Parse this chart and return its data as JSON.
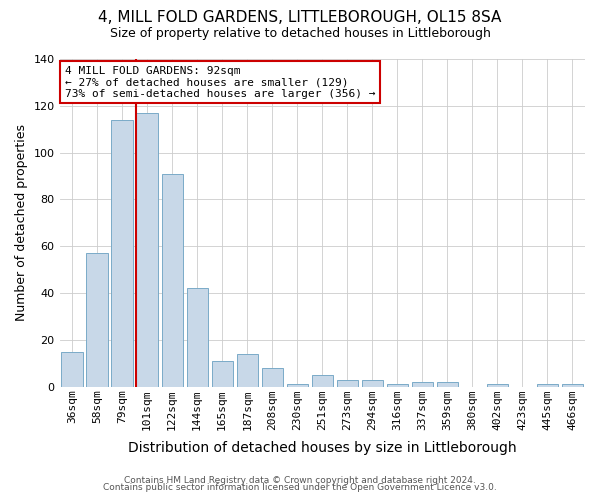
{
  "title": "4, MILL FOLD GARDENS, LITTLEBOROUGH, OL15 8SA",
  "subtitle": "Size of property relative to detached houses in Littleborough",
  "xlabel": "Distribution of detached houses by size in Littleborough",
  "ylabel": "Number of detached properties",
  "footnote1": "Contains HM Land Registry data © Crown copyright and database right 2024.",
  "footnote2": "Contains public sector information licensed under the Open Government Licence v3.0.",
  "bar_labels": [
    "36sqm",
    "58sqm",
    "79sqm",
    "101sqm",
    "122sqm",
    "144sqm",
    "165sqm",
    "187sqm",
    "208sqm",
    "230sqm",
    "251sqm",
    "273sqm",
    "294sqm",
    "316sqm",
    "337sqm",
    "359sqm",
    "380sqm",
    "402sqm",
    "423sqm",
    "445sqm",
    "466sqm"
  ],
  "bar_values": [
    15,
    57,
    114,
    117,
    91,
    42,
    11,
    14,
    8,
    1,
    5,
    3,
    3,
    1,
    2,
    2,
    0,
    1,
    0,
    1,
    1
  ],
  "bar_color": "#c8d8e8",
  "bar_edge_color": "#7aaac8",
  "grid_color": "#cccccc",
  "vline_color": "#cc0000",
  "vline_x_index": 3,
  "annotation_text": "4 MILL FOLD GARDENS: 92sqm\n← 27% of detached houses are smaller (129)\n73% of semi-detached houses are larger (356) →",
  "annotation_box_facecolor": "#ffffff",
  "annotation_box_edgecolor": "#cc0000",
  "ylim": [
    0,
    140
  ],
  "yticks": [
    0,
    20,
    40,
    60,
    80,
    100,
    120,
    140
  ],
  "background_color": "#ffffff",
  "title_fontsize": 11,
  "subtitle_fontsize": 9,
  "xlabel_fontsize": 10,
  "ylabel_fontsize": 9,
  "tick_fontsize": 8,
  "footnote_fontsize": 6.5
}
